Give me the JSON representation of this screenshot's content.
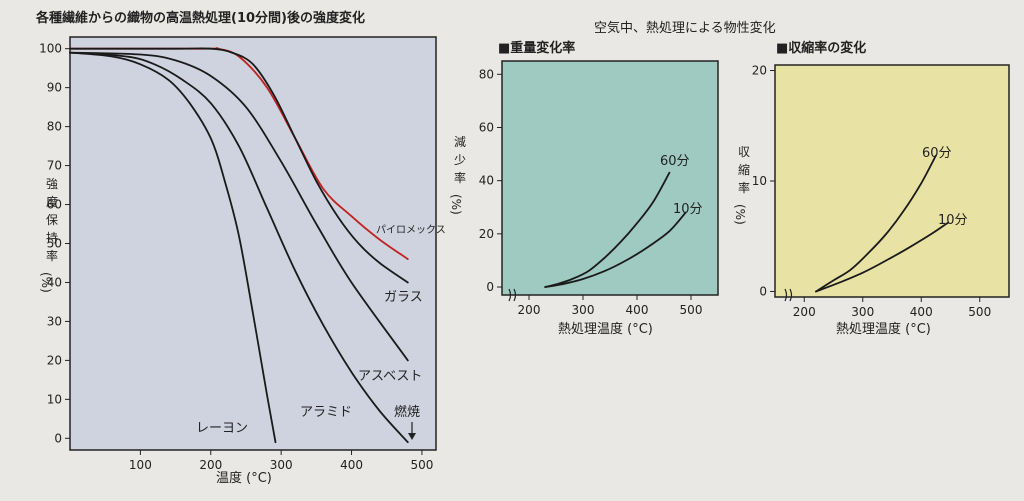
{
  "left_chart": {
    "title": "各種繊維からの織物の高温熱処理(10分間)後の強度変化",
    "ylabel_chars": [
      "強",
      "度",
      "保",
      "持",
      "率"
    ],
    "ylabel_unit": "(%)",
    "xlabel": "温度 (°C)",
    "ytick_labels": [
      "0",
      "10",
      "20",
      "30",
      "40",
      "50",
      "60",
      "70",
      "80",
      "90",
      "100"
    ],
    "xtick_labels": [
      "100",
      "200",
      "300",
      "400",
      "500"
    ],
    "annotation_burn": "燃焼"
  },
  "right_title": "空気中、熱処理による物性変化",
  "weight_chart": {
    "heading": "■重量変化率",
    "ylabel_chars": [
      "減",
      "少",
      "率"
    ],
    "ylabel_unit": "(%)",
    "xlabel": "熱処理温度 (°C)",
    "ytick_labels": [
      "0",
      "20",
      "40",
      "60",
      "80"
    ],
    "xtick_labels": [
      "200",
      "300",
      "400",
      "500"
    ]
  },
  "shrink_chart": {
    "heading": "■収縮率の変化",
    "ylabel_chars": [
      "収",
      "縮",
      "率"
    ],
    "ylabel_unit": "(%)",
    "xlabel": "熱処理温度 (°C)",
    "ytick_labels": [
      "0",
      "10",
      "20"
    ],
    "xtick_labels": [
      "200",
      "300",
      "400",
      "500"
    ]
  },
  "chart_data": [
    {
      "type": "line",
      "title": "各種繊維からの織物の高温熱処理(10分間)後の強度変化",
      "xlabel": "温度 (°C)",
      "ylabel": "強度保持率 (%)",
      "xlim": [
        0,
        520
      ],
      "ylim": [
        -3,
        103
      ],
      "grid": false,
      "background": "#cfd3df",
      "series": [
        {
          "name": "パイロメックス",
          "color": "#c0221f",
          "x": [
            0,
            190,
            210,
            240,
            280,
            320,
            360,
            400,
            440,
            480
          ],
          "y": [
            100,
            100,
            100,
            98,
            90,
            77,
            64,
            57,
            51,
            46
          ]
        },
        {
          "name": "ガラス",
          "color": "#1a1a1a",
          "x": [
            0,
            150,
            200,
            230,
            260,
            290,
            320,
            350,
            380,
            410,
            440,
            480
          ],
          "y": [
            100,
            100,
            100,
            99,
            96,
            88,
            77,
            66,
            57,
            50,
            45,
            40
          ]
        },
        {
          "name": "アスベスト",
          "color": "#1a1a1a",
          "x": [
            0,
            100,
            150,
            200,
            250,
            300,
            350,
            400,
            480
          ],
          "y": [
            99,
            98.5,
            97,
            93,
            85,
            71,
            55,
            40,
            20
          ]
        },
        {
          "name": "アラミド",
          "color": "#1a1a1a",
          "x": [
            0,
            80,
            120,
            160,
            200,
            240,
            280,
            320,
            360,
            400,
            440,
            480
          ],
          "y": [
            99,
            98,
            96,
            92,
            86,
            75,
            59,
            43,
            29,
            17,
            7,
            -1
          ]
        },
        {
          "name": "レーヨン",
          "color": "#1a1a1a",
          "x": [
            0,
            60,
            100,
            140,
            170,
            200,
            220,
            240,
            260,
            280,
            292
          ],
          "y": [
            99,
            98,
            96,
            92,
            86,
            77,
            66,
            52,
            32,
            11,
            -1
          ]
        }
      ]
    },
    {
      "type": "line",
      "title": "■重量変化率",
      "xlabel": "熱処理温度 (°C)",
      "ylabel": "減少率 (%)",
      "xlim": [
        150,
        550
      ],
      "ylim": [
        -3,
        85
      ],
      "grid": false,
      "background": "#9fcac1",
      "series": [
        {
          "name": "60分",
          "color": "#1a1a1a",
          "x": [
            230,
            250,
            280,
            310,
            340,
            370,
            400,
            430,
            460
          ],
          "y": [
            0,
            1,
            3,
            6,
            11,
            17,
            24,
            32,
            43
          ]
        },
        {
          "name": "10分",
          "color": "#1a1a1a",
          "x": [
            230,
            260,
            300,
            340,
            380,
            420,
            460,
            490
          ],
          "y": [
            0,
            1,
            3,
            6,
            10,
            15,
            21,
            28
          ]
        }
      ]
    },
    {
      "type": "line",
      "title": "■収縮率の変化",
      "xlabel": "熱処理温度 (°C)",
      "ylabel": "収縮率 (%)",
      "xlim": [
        150,
        550
      ],
      "ylim": [
        -0.5,
        20.5
      ],
      "grid": false,
      "background": "#e8e2a4",
      "series": [
        {
          "name": "60分",
          "color": "#1a1a1a",
          "x": [
            220,
            250,
            280,
            310,
            340,
            370,
            400,
            425
          ],
          "y": [
            0,
            1,
            2,
            3.5,
            5.2,
            7.3,
            9.8,
            12.3
          ]
        },
        {
          "name": "10分",
          "color": "#1a1a1a",
          "x": [
            220,
            260,
            300,
            340,
            380,
            420,
            445
          ],
          "y": [
            0,
            0.8,
            1.7,
            2.8,
            4,
            5.3,
            6.2
          ]
        }
      ]
    }
  ]
}
